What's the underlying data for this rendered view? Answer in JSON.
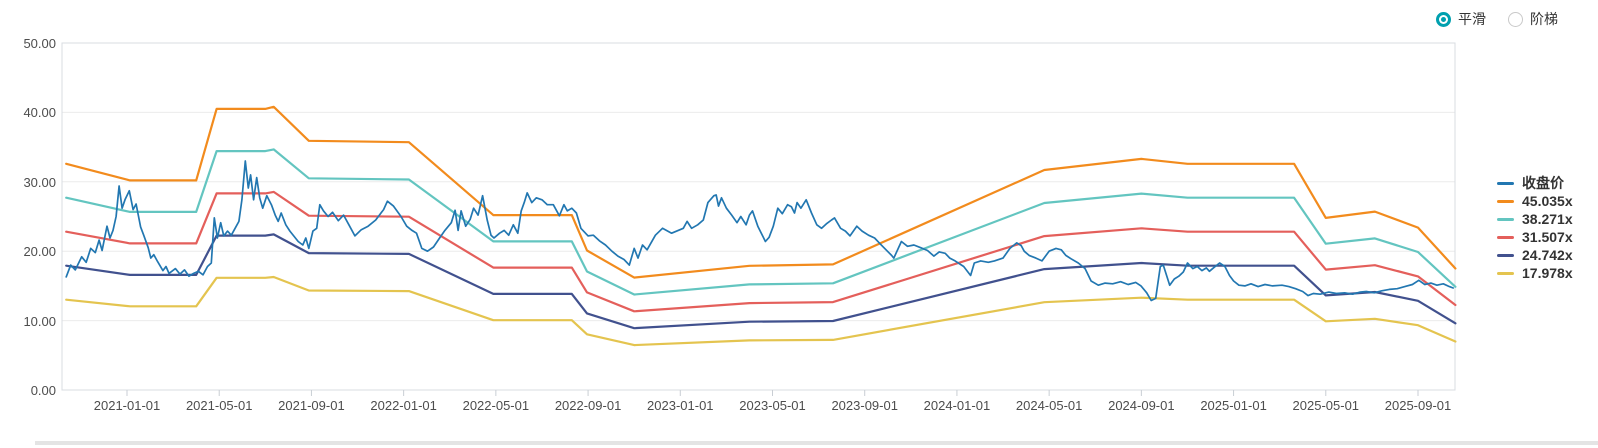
{
  "controls": {
    "accent_color": "#00a0af",
    "options": [
      {
        "label": "平滑",
        "selected": true
      },
      {
        "label": "阶梯",
        "selected": false
      }
    ]
  },
  "chart_data": {
    "type": "line",
    "title": "",
    "grid": true,
    "legend_position": "right",
    "legend": [
      "收盘价",
      "45.035x",
      "38.271x",
      "31.507x",
      "24.742x",
      "17.978x"
    ],
    "y_axis": {
      "min": 0,
      "max": 50,
      "tick_labels": [
        "0.00",
        "10.00",
        "20.00",
        "30.00",
        "40.00",
        "50.00"
      ]
    },
    "x_axis": {
      "tick_labels": [
        "2021-01-01",
        "2021-05-01",
        "2021-09-01",
        "2022-01-01",
        "2022-05-01",
        "2022-09-01",
        "2023-01-01",
        "2023-05-01",
        "2023-09-01",
        "2024-01-01",
        "2024-05-01",
        "2024-09-01",
        "2025-01-01",
        "2025-05-01",
        "2025-09-01"
      ]
    },
    "bands": {
      "comment": "valuation bands; value = base x multiplier",
      "dates": [
        "2020-10-12",
        "2021-01-05",
        "2021-04-01",
        "2021-04-28",
        "2021-07-01",
        "2021-07-12",
        "2021-08-28",
        "2022-01-08",
        "2022-04-28",
        "2022-08-10",
        "2022-08-30",
        "2022-11-01",
        "2023-04-01",
        "2023-07-20",
        "2024-04-25",
        "2024-09-01",
        "2024-11-01",
        "2025-03-20",
        "2025-05-01",
        "2025-07-05",
        "2025-09-01",
        "2025-10-20"
      ],
      "base": [
        0.7239,
        0.6706,
        0.6706,
        0.8993,
        0.8993,
        0.906,
        0.7972,
        0.7927,
        0.5596,
        0.5596,
        0.4463,
        0.3597,
        0.3975,
        0.4019,
        0.7039,
        0.7394,
        0.7239,
        0.7239,
        0.5507,
        0.5707,
        0.5196,
        0.3886
      ],
      "series": [
        {
          "name": "45.035x",
          "multiplier": 45.035,
          "color": "#f28b1d"
        },
        {
          "name": "38.271x",
          "multiplier": 38.271,
          "color": "#63c5c0"
        },
        {
          "name": "31.507x",
          "multiplier": 31.507,
          "color": "#e45f5b"
        },
        {
          "name": "24.742x",
          "multiplier": 24.742,
          "color": "#41518e"
        },
        {
          "name": "17.978x",
          "multiplier": 17.978,
          "color": "#e4c44f"
        }
      ]
    },
    "price_series": {
      "name": "收盘价",
      "color": "#2277b1",
      "points": [
        [
          "2020-10-12",
          16.3
        ],
        [
          "2020-10-18",
          18.0
        ],
        [
          "2020-10-24",
          17.3
        ],
        [
          "2020-11-02",
          19.2
        ],
        [
          "2020-11-08",
          18.4
        ],
        [
          "2020-11-14",
          20.4
        ],
        [
          "2020-11-20",
          19.8
        ],
        [
          "2020-11-25",
          21.6
        ],
        [
          "2020-11-29",
          20.1
        ],
        [
          "2020-12-05",
          23.6
        ],
        [
          "2020-12-09",
          21.9
        ],
        [
          "2020-12-13",
          23.0
        ],
        [
          "2020-12-17",
          25.0
        ],
        [
          "2020-12-21",
          29.4
        ],
        [
          "2020-12-25",
          26.2
        ],
        [
          "2020-12-29",
          27.5
        ],
        [
          "2021-01-04",
          28.7
        ],
        [
          "2021-01-09",
          26.0
        ],
        [
          "2021-01-13",
          26.8
        ],
        [
          "2021-01-19",
          23.5
        ],
        [
          "2021-01-23",
          22.3
        ],
        [
          "2021-01-29",
          20.5
        ],
        [
          "2021-02-02",
          19.0
        ],
        [
          "2021-02-06",
          19.5
        ],
        [
          "2021-02-11",
          18.5
        ],
        [
          "2021-02-18",
          17.2
        ],
        [
          "2021-02-22",
          17.8
        ],
        [
          "2021-02-26",
          16.8
        ],
        [
          "2021-03-04",
          17.5
        ],
        [
          "2021-03-10",
          16.7
        ],
        [
          "2021-03-16",
          17.3
        ],
        [
          "2021-03-22",
          16.4
        ],
        [
          "2021-03-28",
          16.8
        ],
        [
          "2021-04-04",
          17.1
        ],
        [
          "2021-04-10",
          16.6
        ],
        [
          "2021-04-16",
          17.8
        ],
        [
          "2021-04-21",
          18.3
        ],
        [
          "2021-04-25",
          24.8
        ],
        [
          "2021-04-29",
          21.9
        ],
        [
          "2021-05-03",
          24.1
        ],
        [
          "2021-05-07",
          22.2
        ],
        [
          "2021-05-12",
          22.9
        ],
        [
          "2021-05-17",
          22.3
        ],
        [
          "2021-05-22",
          23.3
        ],
        [
          "2021-05-27",
          24.3
        ],
        [
          "2021-05-31",
          27.4
        ],
        [
          "2021-06-05",
          33.0
        ],
        [
          "2021-06-09",
          29.1
        ],
        [
          "2021-06-12",
          31.0
        ],
        [
          "2021-06-16",
          27.4
        ],
        [
          "2021-06-20",
          30.6
        ],
        [
          "2021-06-24",
          27.7
        ],
        [
          "2021-06-28",
          26.2
        ],
        [
          "2021-07-03",
          28.0
        ],
        [
          "2021-07-09",
          26.7
        ],
        [
          "2021-07-14",
          25.2
        ],
        [
          "2021-07-18",
          24.3
        ],
        [
          "2021-07-22",
          25.5
        ],
        [
          "2021-07-28",
          23.8
        ],
        [
          "2021-08-03",
          22.9
        ],
        [
          "2021-08-08",
          22.2
        ],
        [
          "2021-08-14",
          21.4
        ],
        [
          "2021-08-20",
          20.9
        ],
        [
          "2021-08-24",
          21.9
        ],
        [
          "2021-08-28",
          20.4
        ],
        [
          "2021-09-03",
          22.9
        ],
        [
          "2021-09-08",
          23.3
        ],
        [
          "2021-09-12",
          26.7
        ],
        [
          "2021-09-17",
          25.8
        ],
        [
          "2021-09-23",
          25.0
        ],
        [
          "2021-09-29",
          25.6
        ],
        [
          "2021-10-06",
          24.4
        ],
        [
          "2021-10-13",
          25.2
        ],
        [
          "2021-10-20",
          23.8
        ],
        [
          "2021-10-28",
          22.2
        ],
        [
          "2021-11-06",
          23.1
        ],
        [
          "2021-11-15",
          23.6
        ],
        [
          "2021-11-25",
          24.5
        ],
        [
          "2021-12-05",
          26.0
        ],
        [
          "2021-12-10",
          27.2
        ],
        [
          "2021-12-18",
          26.5
        ],
        [
          "2021-12-28",
          25.0
        ],
        [
          "2022-01-05",
          23.6
        ],
        [
          "2022-01-12",
          23.0
        ],
        [
          "2022-01-18",
          22.6
        ],
        [
          "2022-01-25",
          20.4
        ],
        [
          "2022-02-02",
          20.0
        ],
        [
          "2022-02-10",
          20.6
        ],
        [
          "2022-02-18",
          21.9
        ],
        [
          "2022-02-25",
          23.0
        ],
        [
          "2022-03-03",
          24.1
        ],
        [
          "2022-03-08",
          25.9
        ],
        [
          "2022-03-12",
          23.0
        ],
        [
          "2022-03-16",
          25.8
        ],
        [
          "2022-03-22",
          23.6
        ],
        [
          "2022-03-28",
          24.6
        ],
        [
          "2022-04-02",
          26.2
        ],
        [
          "2022-04-08",
          25.2
        ],
        [
          "2022-04-14",
          28.0
        ],
        [
          "2022-04-20",
          24.5
        ],
        [
          "2022-04-25",
          22.3
        ],
        [
          "2022-04-29",
          21.9
        ],
        [
          "2022-05-06",
          22.6
        ],
        [
          "2022-05-12",
          23.0
        ],
        [
          "2022-05-18",
          22.3
        ],
        [
          "2022-05-24",
          23.8
        ],
        [
          "2022-05-30",
          22.6
        ],
        [
          "2022-06-04",
          25.8
        ],
        [
          "2022-06-08",
          27.0
        ],
        [
          "2022-06-12",
          28.4
        ],
        [
          "2022-06-18",
          27.0
        ],
        [
          "2022-06-24",
          27.7
        ],
        [
          "2022-07-01",
          27.4
        ],
        [
          "2022-07-08",
          26.7
        ],
        [
          "2022-07-16",
          26.7
        ],
        [
          "2022-07-24",
          25.1
        ],
        [
          "2022-07-30",
          26.7
        ],
        [
          "2022-08-04",
          25.8
        ],
        [
          "2022-08-10",
          26.2
        ],
        [
          "2022-08-16",
          25.5
        ],
        [
          "2022-08-22",
          23.3
        ],
        [
          "2022-09-01",
          22.2
        ],
        [
          "2022-09-08",
          22.3
        ],
        [
          "2022-09-16",
          21.5
        ],
        [
          "2022-09-24",
          20.9
        ],
        [
          "2022-10-02",
          20.0
        ],
        [
          "2022-10-10",
          19.3
        ],
        [
          "2022-10-18",
          18.8
        ],
        [
          "2022-10-25",
          18.0
        ],
        [
          "2022-11-01",
          20.4
        ],
        [
          "2022-11-06",
          19.0
        ],
        [
          "2022-11-12",
          20.9
        ],
        [
          "2022-11-18",
          20.2
        ],
        [
          "2022-11-29",
          22.3
        ],
        [
          "2022-12-08",
          23.3
        ],
        [
          "2022-12-20",
          22.6
        ],
        [
          "2023-01-05",
          23.3
        ],
        [
          "2023-01-10",
          24.3
        ],
        [
          "2023-01-16",
          23.3
        ],
        [
          "2023-01-24",
          23.8
        ],
        [
          "2023-02-01",
          24.5
        ],
        [
          "2023-02-07",
          27.0
        ],
        [
          "2023-02-15",
          28.0
        ],
        [
          "2023-02-18",
          28.1
        ],
        [
          "2023-02-21",
          26.5
        ],
        [
          "2023-02-25",
          27.7
        ],
        [
          "2023-03-01",
          26.2
        ],
        [
          "2023-03-08",
          25.2
        ],
        [
          "2023-03-15",
          24.1
        ],
        [
          "2023-03-20",
          25.0
        ],
        [
          "2023-03-27",
          23.8
        ],
        [
          "2023-04-01",
          25.2
        ],
        [
          "2023-04-05",
          25.8
        ],
        [
          "2023-04-12",
          23.6
        ],
        [
          "2023-04-18",
          22.3
        ],
        [
          "2023-04-22",
          21.4
        ],
        [
          "2023-04-27",
          22.0
        ],
        [
          "2023-05-02",
          23.6
        ],
        [
          "2023-05-08",
          26.2
        ],
        [
          "2023-05-14",
          25.4
        ],
        [
          "2023-05-21",
          26.7
        ],
        [
          "2023-05-26",
          26.4
        ],
        [
          "2023-05-30",
          25.5
        ],
        [
          "2023-06-03",
          27.0
        ],
        [
          "2023-06-08",
          26.2
        ],
        [
          "2023-06-15",
          27.4
        ],
        [
          "2023-06-22",
          25.5
        ],
        [
          "2023-06-29",
          23.8
        ],
        [
          "2023-07-05",
          23.3
        ],
        [
          "2023-07-12",
          24.0
        ],
        [
          "2023-07-18",
          24.5
        ],
        [
          "2023-07-22",
          24.8
        ],
        [
          "2023-07-30",
          23.3
        ],
        [
          "2023-08-06",
          22.9
        ],
        [
          "2023-08-12",
          22.2
        ],
        [
          "2023-08-21",
          23.6
        ],
        [
          "2023-08-28",
          22.9
        ],
        [
          "2023-09-06",
          22.3
        ],
        [
          "2023-09-14",
          21.9
        ],
        [
          "2023-09-22",
          21.0
        ],
        [
          "2023-10-06",
          19.4
        ],
        [
          "2023-10-09",
          19.0
        ],
        [
          "2023-10-19",
          21.4
        ],
        [
          "2023-10-27",
          20.7
        ],
        [
          "2023-11-05",
          20.9
        ],
        [
          "2023-11-14",
          20.5
        ],
        [
          "2023-11-23",
          20.1
        ],
        [
          "2023-12-01",
          19.3
        ],
        [
          "2023-12-08",
          19.9
        ],
        [
          "2023-12-16",
          19.7
        ],
        [
          "2023-12-22",
          19.0
        ],
        [
          "2023-12-29",
          18.6
        ],
        [
          "2024-01-10",
          17.8
        ],
        [
          "2024-01-19",
          16.5
        ],
        [
          "2024-01-24",
          18.3
        ],
        [
          "2024-02-02",
          18.6
        ],
        [
          "2024-02-12",
          18.4
        ],
        [
          "2024-02-20",
          18.6
        ],
        [
          "2024-03-01",
          19.0
        ],
        [
          "2024-03-10",
          20.4
        ],
        [
          "2024-03-19",
          21.2
        ],
        [
          "2024-03-25",
          20.8
        ],
        [
          "2024-03-29",
          20.0
        ],
        [
          "2024-04-05",
          19.4
        ],
        [
          "2024-04-14",
          19.0
        ],
        [
          "2024-04-22",
          18.6
        ],
        [
          "2024-05-01",
          20.0
        ],
        [
          "2024-05-10",
          20.4
        ],
        [
          "2024-05-17",
          20.2
        ],
        [
          "2024-05-23",
          19.4
        ],
        [
          "2024-05-30",
          18.9
        ],
        [
          "2024-06-09",
          18.3
        ],
        [
          "2024-06-18",
          17.5
        ],
        [
          "2024-06-26",
          15.7
        ],
        [
          "2024-07-05",
          15.1
        ],
        [
          "2024-07-14",
          15.4
        ],
        [
          "2024-07-24",
          15.3
        ],
        [
          "2024-08-04",
          15.6
        ],
        [
          "2024-08-14",
          15.2
        ],
        [
          "2024-08-24",
          15.5
        ],
        [
          "2024-08-31",
          15.0
        ],
        [
          "2024-09-08",
          14.0
        ],
        [
          "2024-09-14",
          12.9
        ],
        [
          "2024-09-20",
          13.2
        ],
        [
          "2024-09-26",
          17.8
        ],
        [
          "2024-09-30",
          18.0
        ],
        [
          "2024-10-08",
          15.1
        ],
        [
          "2024-10-14",
          16.0
        ],
        [
          "2024-10-20",
          16.4
        ],
        [
          "2024-10-26",
          17.0
        ],
        [
          "2024-11-01",
          18.3
        ],
        [
          "2024-11-08",
          17.5
        ],
        [
          "2024-11-14",
          17.8
        ],
        [
          "2024-11-20",
          17.2
        ],
        [
          "2024-11-26",
          17.6
        ],
        [
          "2024-11-30",
          17.1
        ],
        [
          "2024-12-06",
          17.7
        ],
        [
          "2024-12-13",
          18.3
        ],
        [
          "2024-12-20",
          17.8
        ],
        [
          "2024-12-26",
          16.5
        ],
        [
          "2025-01-01",
          15.7
        ],
        [
          "2025-01-08",
          15.1
        ],
        [
          "2025-01-16",
          15.0
        ],
        [
          "2025-01-24",
          15.3
        ],
        [
          "2025-02-03",
          14.9
        ],
        [
          "2025-02-12",
          15.2
        ],
        [
          "2025-02-22",
          15.0
        ],
        [
          "2025-03-04",
          15.1
        ],
        [
          "2025-03-13",
          14.9
        ],
        [
          "2025-03-22",
          14.6
        ],
        [
          "2025-04-01",
          14.2
        ],
        [
          "2025-04-08",
          13.6
        ],
        [
          "2025-04-15",
          13.9
        ],
        [
          "2025-04-24",
          13.8
        ],
        [
          "2025-05-05",
          14.1
        ],
        [
          "2025-05-15",
          13.9
        ],
        [
          "2025-05-26",
          14.0
        ],
        [
          "2025-06-06",
          13.8
        ],
        [
          "2025-06-16",
          14.1
        ],
        [
          "2025-06-24",
          14.2
        ],
        [
          "2025-07-04",
          14.0
        ],
        [
          "2025-07-14",
          14.3
        ],
        [
          "2025-07-24",
          14.5
        ],
        [
          "2025-08-04",
          14.6
        ],
        [
          "2025-08-14",
          14.9
        ],
        [
          "2025-08-24",
          15.2
        ],
        [
          "2025-09-02",
          15.8
        ],
        [
          "2025-09-10",
          15.2
        ],
        [
          "2025-09-18",
          15.4
        ],
        [
          "2025-09-26",
          15.1
        ],
        [
          "2025-10-04",
          15.3
        ],
        [
          "2025-10-12",
          14.9
        ],
        [
          "2025-10-17",
          14.7
        ]
      ]
    }
  }
}
